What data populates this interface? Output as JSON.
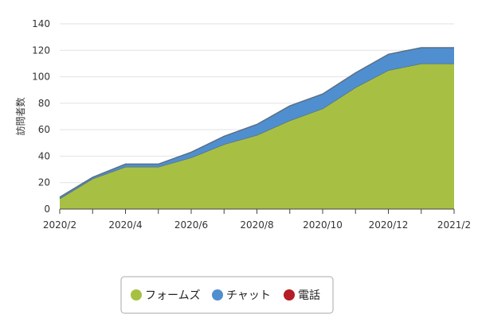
{
  "chart_data": {
    "type": "area",
    "stacked": true,
    "ylabel": "訪問者数",
    "ylim": [
      0,
      140
    ],
    "yticks": [
      0,
      20,
      40,
      60,
      80,
      100,
      120,
      140
    ],
    "x": [
      "2020/2",
      "2020/3",
      "2020/4",
      "2020/5",
      "2020/6",
      "2020/7",
      "2020/8",
      "2020/9",
      "2020/10",
      "2020/11",
      "2020/12",
      "2021/1",
      "2021/2"
    ],
    "xtick_labels": [
      "2020/2",
      "2020/4",
      "2020/6",
      "2020/8",
      "2020/10",
      "2020/12",
      "2021/2"
    ],
    "grid": true,
    "legend_position": "bottom",
    "series": [
      {
        "name": "フォームズ",
        "color": "#a7c044",
        "values": [
          8,
          23,
          32,
          32,
          39,
          49,
          56,
          67,
          76,
          92,
          105,
          110,
          110
        ]
      },
      {
        "name": "チャット",
        "color": "#4f8fcf",
        "values": [
          1,
          1,
          2,
          2,
          4,
          6,
          8,
          11,
          11,
          11,
          12,
          12,
          12
        ]
      },
      {
        "name": "電話",
        "color": "#b41e24",
        "values": [
          0,
          0,
          0,
          0,
          0,
          0,
          0,
          0,
          0,
          0,
          0,
          0,
          0
        ]
      }
    ]
  }
}
